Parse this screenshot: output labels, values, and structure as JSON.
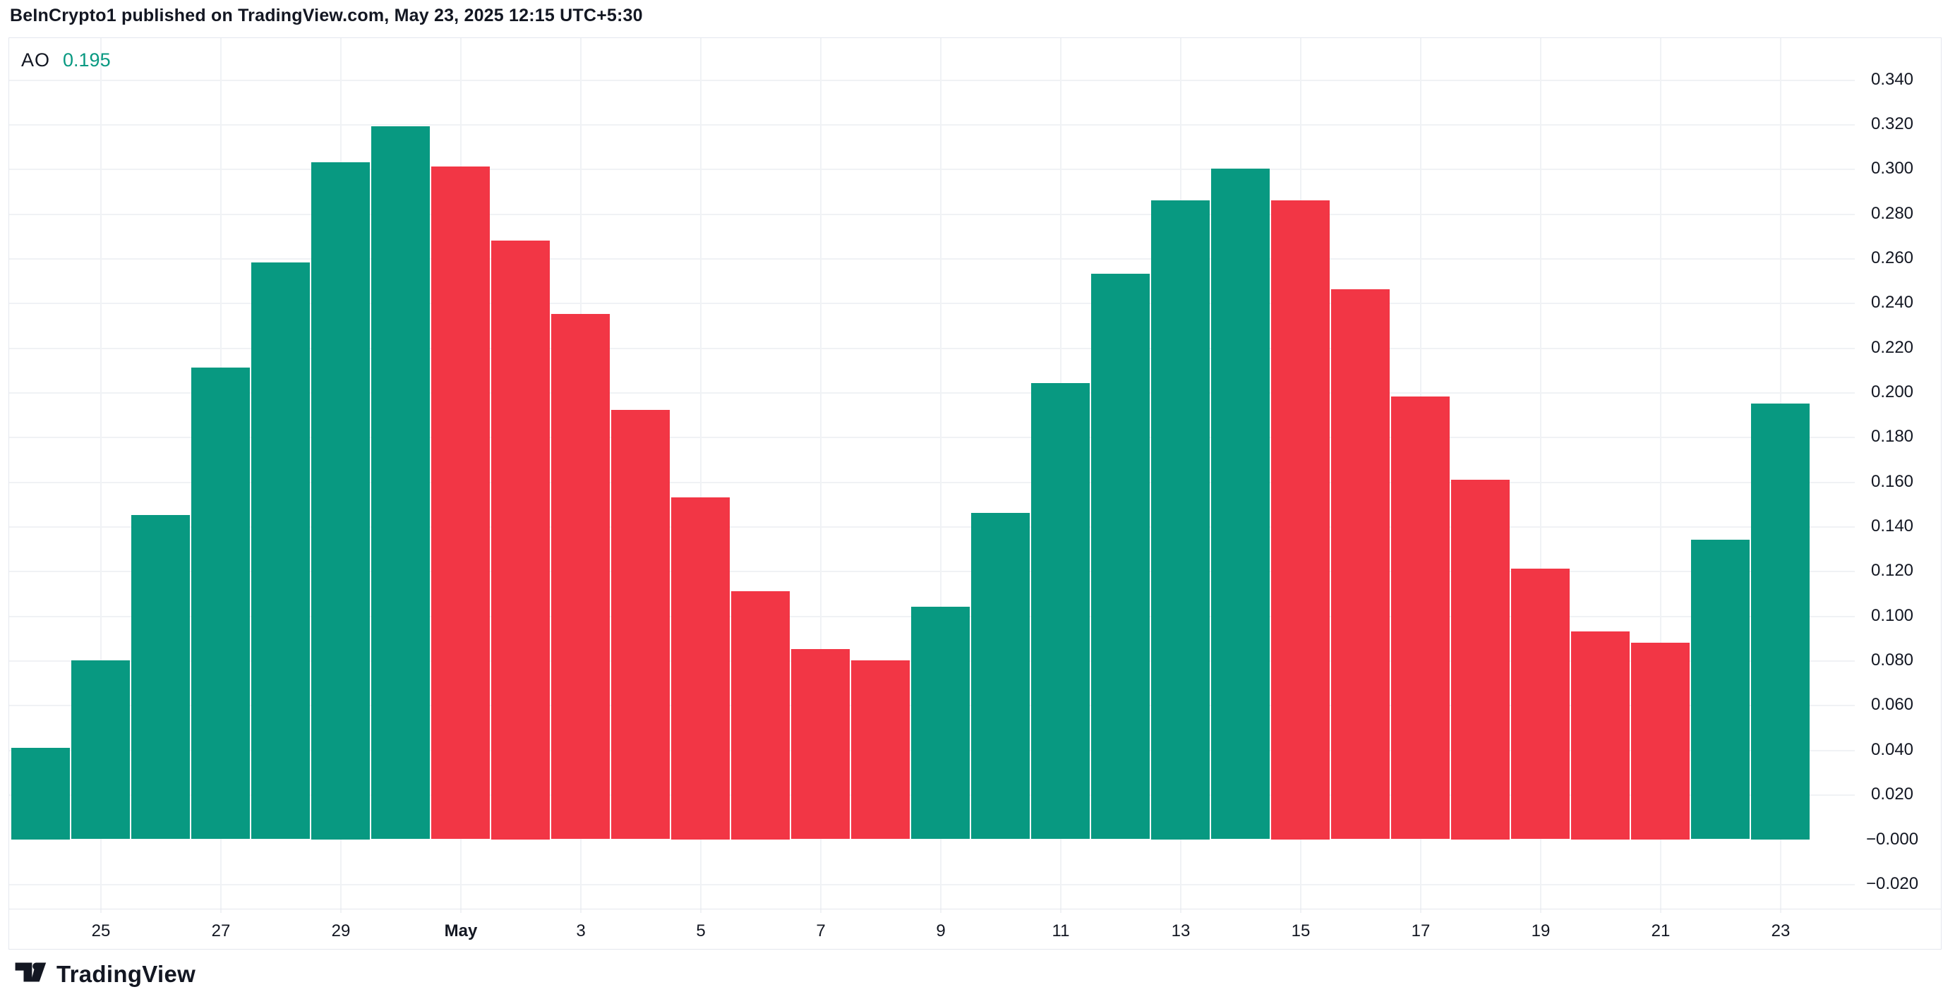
{
  "header": {
    "attribution": "BeInCrypto1 published on TradingView.com, May 23, 2025 12:15 UTC+5:30"
  },
  "legend": {
    "indicator": "AO",
    "value": "0.195"
  },
  "footer": {
    "logo_icon": "tradingview-logo",
    "logo_text": "TradingView"
  },
  "colors": {
    "positive": "#089981",
    "negative": "#F23645",
    "grid": "#F0F2F5",
    "border": "#E4E7EE",
    "text": "#131722",
    "background": "#FFFFFF"
  },
  "chart_data": {
    "type": "bar",
    "title": "AO (Awesome Oscillator) histogram",
    "xlabel": "",
    "ylabel": "",
    "grid": true,
    "legend_position": "top-left",
    "ylim": [
      -0.031,
      0.359
    ],
    "y_ticks": [
      {
        "label": "0.340",
        "value": 0.34
      },
      {
        "label": "0.320",
        "value": 0.32
      },
      {
        "label": "0.300",
        "value": 0.3
      },
      {
        "label": "0.280",
        "value": 0.28
      },
      {
        "label": "0.260",
        "value": 0.26
      },
      {
        "label": "0.240",
        "value": 0.24
      },
      {
        "label": "0.220",
        "value": 0.22
      },
      {
        "label": "0.200",
        "value": 0.2
      },
      {
        "label": "0.180",
        "value": 0.18
      },
      {
        "label": "0.160",
        "value": 0.16
      },
      {
        "label": "0.140",
        "value": 0.14
      },
      {
        "label": "0.120",
        "value": 0.12
      },
      {
        "label": "0.100",
        "value": 0.1
      },
      {
        "label": "0.080",
        "value": 0.08
      },
      {
        "label": "0.060",
        "value": 0.06
      },
      {
        "label": "0.040",
        "value": 0.04
      },
      {
        "label": "0.020",
        "value": 0.02
      },
      {
        "label": "−0.000",
        "value": 0.0
      },
      {
        "label": "−0.020",
        "value": -0.02
      }
    ],
    "x_ticks": [
      {
        "label": "25",
        "bar_index": 1,
        "month": false
      },
      {
        "label": "27",
        "bar_index": 3,
        "month": false
      },
      {
        "label": "29",
        "bar_index": 5,
        "month": false
      },
      {
        "label": "May",
        "bar_index": 7,
        "month": true
      },
      {
        "label": "3",
        "bar_index": 9,
        "month": false
      },
      {
        "label": "5",
        "bar_index": 11,
        "month": false
      },
      {
        "label": "7",
        "bar_index": 13,
        "month": false
      },
      {
        "label": "9",
        "bar_index": 15,
        "month": false
      },
      {
        "label": "11",
        "bar_index": 17,
        "month": false
      },
      {
        "label": "13",
        "bar_index": 19,
        "month": false
      },
      {
        "label": "15",
        "bar_index": 21,
        "month": false
      },
      {
        "label": "17",
        "bar_index": 23,
        "month": false
      },
      {
        "label": "19",
        "bar_index": 25,
        "month": false
      },
      {
        "label": "21",
        "bar_index": 27,
        "month": false
      },
      {
        "label": "23",
        "bar_index": 29,
        "month": false
      }
    ],
    "bars": [
      {
        "value": 0.041,
        "direction": "up"
      },
      {
        "value": 0.08,
        "direction": "up"
      },
      {
        "value": 0.145,
        "direction": "up"
      },
      {
        "value": 0.211,
        "direction": "up"
      },
      {
        "value": 0.258,
        "direction": "up"
      },
      {
        "value": 0.303,
        "direction": "up"
      },
      {
        "value": 0.319,
        "direction": "up"
      },
      {
        "value": 0.301,
        "direction": "down"
      },
      {
        "value": 0.268,
        "direction": "down"
      },
      {
        "value": 0.235,
        "direction": "down"
      },
      {
        "value": 0.192,
        "direction": "down"
      },
      {
        "value": 0.153,
        "direction": "down"
      },
      {
        "value": 0.111,
        "direction": "down"
      },
      {
        "value": 0.085,
        "direction": "down"
      },
      {
        "value": 0.08,
        "direction": "down"
      },
      {
        "value": 0.104,
        "direction": "up"
      },
      {
        "value": 0.146,
        "direction": "up"
      },
      {
        "value": 0.204,
        "direction": "up"
      },
      {
        "value": 0.253,
        "direction": "up"
      },
      {
        "value": 0.286,
        "direction": "up"
      },
      {
        "value": 0.3,
        "direction": "up"
      },
      {
        "value": 0.286,
        "direction": "down"
      },
      {
        "value": 0.246,
        "direction": "down"
      },
      {
        "value": 0.198,
        "direction": "down"
      },
      {
        "value": 0.161,
        "direction": "down"
      },
      {
        "value": 0.121,
        "direction": "down"
      },
      {
        "value": 0.093,
        "direction": "down"
      },
      {
        "value": 0.088,
        "direction": "down"
      },
      {
        "value": 0.134,
        "direction": "up"
      },
      {
        "value": 0.195,
        "direction": "up"
      }
    ]
  }
}
